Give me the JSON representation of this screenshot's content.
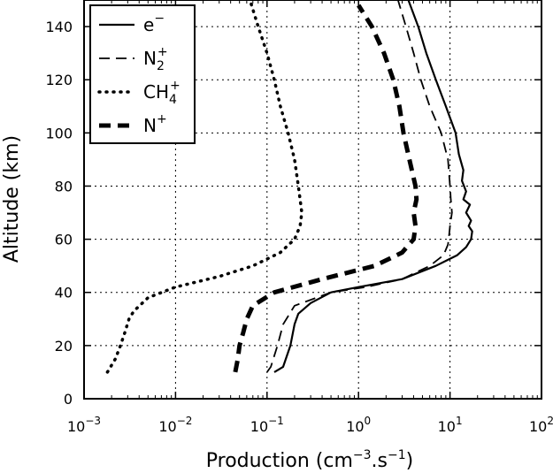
{
  "chart_data": {
    "type": "line",
    "xlabel": "Production (cm",
    "xlabel_sup": "−3",
    "xlabel_mid": ".s",
    "xlabel_sup2": "−1",
    "xlabel_end": ")",
    "ylabel": "Altitude (km)",
    "x_scale": "log",
    "xlim": [
      0.001,
      100
    ],
    "ylim": [
      0,
      150
    ],
    "grid": true,
    "grid_style": "dotted",
    "legend_position": "top-left",
    "x_ticks": [
      {
        "base": "10",
        "exp": "−3"
      },
      {
        "base": "10",
        "exp": "−2"
      },
      {
        "base": "10",
        "exp": "−1"
      },
      {
        "base": "10",
        "exp": "0"
      },
      {
        "base": "10",
        "exp": "1"
      },
      {
        "base": "10",
        "exp": "2"
      }
    ],
    "y_ticks": [
      "0",
      "20",
      "40",
      "60",
      "80",
      "100",
      "120",
      "140"
    ],
    "series": [
      {
        "name": "e",
        "name_sup": "−",
        "name_sub": "",
        "style": "solid",
        "color": "#000000",
        "points": [
          [
            0.12,
            10
          ],
          [
            0.15,
            12
          ],
          [
            0.18,
            20
          ],
          [
            0.2,
            28
          ],
          [
            0.22,
            32
          ],
          [
            0.3,
            36
          ],
          [
            0.5,
            40
          ],
          [
            1.0,
            42
          ],
          [
            3.0,
            45
          ],
          [
            7.0,
            50
          ],
          [
            12.0,
            54
          ],
          [
            15.0,
            57
          ],
          [
            17.0,
            60
          ],
          [
            17.5,
            63
          ],
          [
            16.0,
            65
          ],
          [
            17.0,
            67
          ],
          [
            15.0,
            70
          ],
          [
            16.5,
            73
          ],
          [
            14.0,
            75
          ],
          [
            15.0,
            78
          ],
          [
            13.5,
            82
          ],
          [
            14.0,
            86
          ],
          [
            12.5,
            92
          ],
          [
            11.5,
            100
          ],
          [
            9.0,
            110
          ],
          [
            7.0,
            120
          ],
          [
            5.5,
            130
          ],
          [
            4.5,
            140
          ],
          [
            3.5,
            150
          ]
        ]
      },
      {
        "name": "N",
        "name_sup": "+",
        "name_sub": "2",
        "style": "dashed",
        "color": "#000000",
        "points": [
          [
            0.1,
            10
          ],
          [
            0.11,
            12
          ],
          [
            0.13,
            20
          ],
          [
            0.15,
            28
          ],
          [
            0.2,
            35
          ],
          [
            0.5,
            40
          ],
          [
            1.2,
            42
          ],
          [
            3.0,
            45
          ],
          [
            6.0,
            50
          ],
          [
            8.5,
            54
          ],
          [
            9.5,
            58
          ],
          [
            9.8,
            62
          ],
          [
            10.0,
            65
          ],
          [
            10.5,
            70
          ],
          [
            10.2,
            75
          ],
          [
            10.0,
            80
          ],
          [
            9.5,
            90
          ],
          [
            8.0,
            100
          ],
          [
            6.0,
            110
          ],
          [
            4.8,
            120
          ],
          [
            4.0,
            130
          ],
          [
            3.3,
            140
          ],
          [
            2.7,
            150
          ]
        ]
      },
      {
        "name": "CH",
        "name_sup": "+",
        "name_sub": "4",
        "style": "dotted",
        "color": "#000000",
        "points": [
          [
            0.0018,
            10
          ],
          [
            0.0022,
            15
          ],
          [
            0.0025,
            20
          ],
          [
            0.0028,
            25
          ],
          [
            0.0031,
            30
          ],
          [
            0.0035,
            33
          ],
          [
            0.005,
            38
          ],
          [
            0.01,
            42
          ],
          [
            0.03,
            46
          ],
          [
            0.07,
            50
          ],
          [
            0.14,
            55
          ],
          [
            0.2,
            60
          ],
          [
            0.23,
            65
          ],
          [
            0.24,
            70
          ],
          [
            0.22,
            80
          ],
          [
            0.2,
            90
          ],
          [
            0.17,
            100
          ],
          [
            0.14,
            110
          ],
          [
            0.12,
            120
          ],
          [
            0.1,
            130
          ],
          [
            0.08,
            140
          ],
          [
            0.065,
            150
          ]
        ]
      },
      {
        "name": "N",
        "name_sup": "+",
        "name_sub": "",
        "style": "thick-dashed",
        "color": "#000000",
        "points": [
          [
            0.045,
            10
          ],
          [
            0.048,
            15
          ],
          [
            0.05,
            20
          ],
          [
            0.055,
            25
          ],
          [
            0.06,
            30
          ],
          [
            0.07,
            35
          ],
          [
            0.12,
            40
          ],
          [
            0.4,
            45
          ],
          [
            1.5,
            50
          ],
          [
            3.0,
            55
          ],
          [
            4.0,
            60
          ],
          [
            4.2,
            65
          ],
          [
            4.0,
            70
          ],
          [
            4.3,
            75
          ],
          [
            4.2,
            80
          ],
          [
            3.6,
            90
          ],
          [
            3.1,
            100
          ],
          [
            2.8,
            110
          ],
          [
            2.4,
            120
          ],
          [
            1.9,
            130
          ],
          [
            1.4,
            140
          ],
          [
            1.0,
            148
          ]
        ]
      }
    ]
  }
}
